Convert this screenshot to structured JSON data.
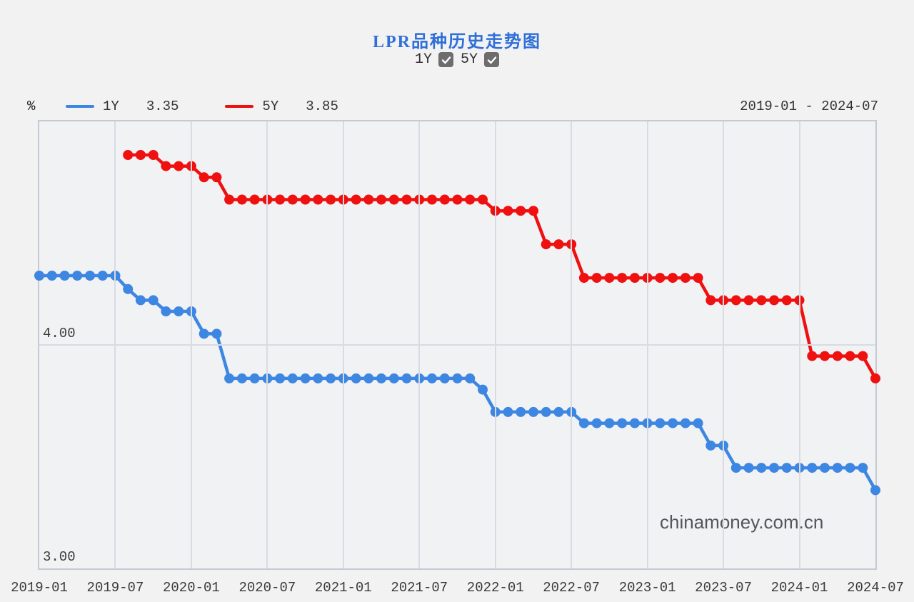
{
  "title": "LPR品种历史走势图",
  "controls": {
    "items": [
      {
        "label": "1Y",
        "checked": true
      },
      {
        "label": "5Y",
        "checked": true
      }
    ]
  },
  "legend": {
    "unit": "%",
    "items": [
      {
        "label": "1Y",
        "value": "3.35",
        "color": "#3D86E2"
      },
      {
        "label": "5Y",
        "value": "3.85",
        "color": "#EF1010"
      }
    ],
    "range": "2019-01 - 2024-07"
  },
  "watermark": "chinamoney.com.cn",
  "chart_data": {
    "type": "line",
    "title": "LPR品种历史走势图",
    "unit": "%",
    "ylim": [
      3.0,
      5.0
    ],
    "x_range_months": 66,
    "x_ticks": [
      "2019-01",
      "2019-07",
      "2020-01",
      "2020-07",
      "2021-01",
      "2021-07",
      "2022-01",
      "2022-07",
      "2023-01",
      "2023-07",
      "2024-01",
      "2024-07"
    ],
    "y_ticks": [
      {
        "label": "4.00",
        "value": 4.0
      },
      {
        "label": "3.00",
        "value": 3.0
      }
    ],
    "grid": "on",
    "marker": "circle",
    "series": [
      {
        "name": "1Y",
        "color": "#3D86E2",
        "start_month": "2019-01",
        "start_index": 0,
        "latest": 3.35,
        "values": [
          4.31,
          4.31,
          4.31,
          4.31,
          4.31,
          4.31,
          4.31,
          4.25,
          4.2,
          4.2,
          4.15,
          4.15,
          4.15,
          4.05,
          4.05,
          3.85,
          3.85,
          3.85,
          3.85,
          3.85,
          3.85,
          3.85,
          3.85,
          3.85,
          3.85,
          3.85,
          3.85,
          3.85,
          3.85,
          3.85,
          3.85,
          3.85,
          3.85,
          3.85,
          3.85,
          3.8,
          3.7,
          3.7,
          3.7,
          3.7,
          3.7,
          3.7,
          3.7,
          3.65,
          3.65,
          3.65,
          3.65,
          3.65,
          3.65,
          3.65,
          3.65,
          3.65,
          3.65,
          3.55,
          3.55,
          3.45,
          3.45,
          3.45,
          3.45,
          3.45,
          3.45,
          3.45,
          3.45,
          3.45,
          3.45,
          3.45,
          3.35
        ]
      },
      {
        "name": "5Y",
        "color": "#EF1010",
        "start_month": "2019-08",
        "start_index": 7,
        "latest": 3.85,
        "values": [
          4.85,
          4.85,
          4.85,
          4.8,
          4.8,
          4.8,
          4.75,
          4.75,
          4.65,
          4.65,
          4.65,
          4.65,
          4.65,
          4.65,
          4.65,
          4.65,
          4.65,
          4.65,
          4.65,
          4.65,
          4.65,
          4.65,
          4.65,
          4.65,
          4.65,
          4.65,
          4.65,
          4.65,
          4.65,
          4.6,
          4.6,
          4.6,
          4.6,
          4.45,
          4.45,
          4.45,
          4.3,
          4.3,
          4.3,
          4.3,
          4.3,
          4.3,
          4.3,
          4.3,
          4.3,
          4.3,
          4.2,
          4.2,
          4.2,
          4.2,
          4.2,
          4.2,
          4.2,
          4.2,
          3.95,
          3.95,
          3.95,
          3.95,
          3.95,
          3.85
        ]
      }
    ]
  }
}
